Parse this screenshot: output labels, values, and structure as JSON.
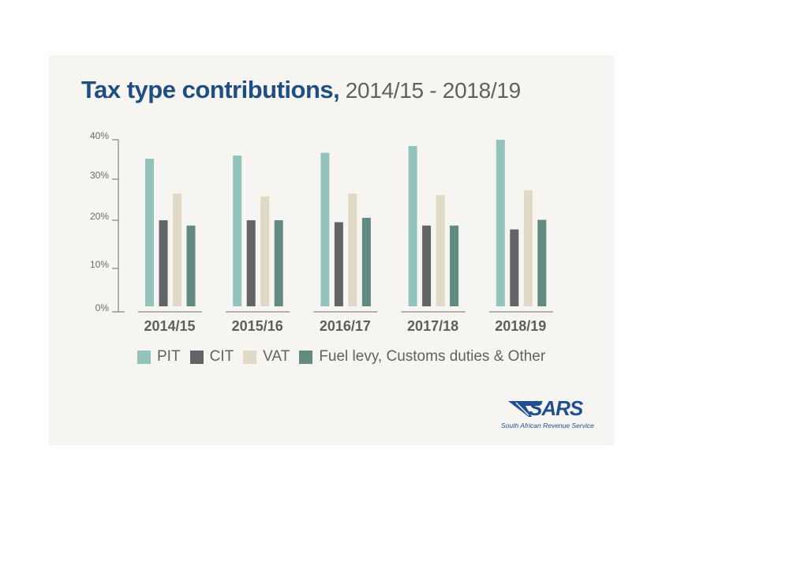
{
  "title": {
    "main": "Tax type contributions,",
    "sub": " 2014/15 - 2018/19"
  },
  "colors": {
    "PIT": "#92c4bc",
    "CIT": "#636468",
    "VAT": "#e0d9c6",
    "Fuel levy, Customs duties & Other": "#628a81",
    "panel_bg": "#f6f5f1",
    "title": "#1f4f82",
    "axis": "#8a8a8a"
  },
  "chart_data": {
    "type": "bar",
    "title": "Tax type contributions, 2014/15 - 2018/19",
    "xlabel": "",
    "ylabel": "",
    "categories": [
      "2014/15",
      "2015/16",
      "2016/17",
      "2017/18",
      "2018/19"
    ],
    "series": [
      {
        "name": "PIT",
        "values": [
          35.2,
          36.0,
          36.7,
          38.4,
          40.0
        ]
      },
      {
        "name": "CIT",
        "values": [
          20.0,
          20.0,
          19.6,
          18.9,
          18.1
        ]
      },
      {
        "name": "VAT",
        "values": [
          26.5,
          25.8,
          26.5,
          26.1,
          27.3
        ]
      },
      {
        "name": "Fuel levy, Customs duties & Other",
        "values": [
          18.9,
          20.0,
          20.6,
          18.9,
          20.1
        ]
      }
    ],
    "yticks": [
      0,
      10,
      20,
      30,
      40
    ],
    "ytick_labels": [
      "0%",
      "10%",
      "20%",
      "30%",
      "40%"
    ],
    "ylim": [
      0,
      40
    ],
    "grid": false,
    "legend_position": "bottom"
  },
  "legend": {
    "items": [
      "PIT",
      "CIT",
      "VAT",
      "Fuel levy, Customs duties & Other"
    ]
  },
  "logo": {
    "wordmark": "SARS",
    "tagline": "South African Revenue Service"
  }
}
